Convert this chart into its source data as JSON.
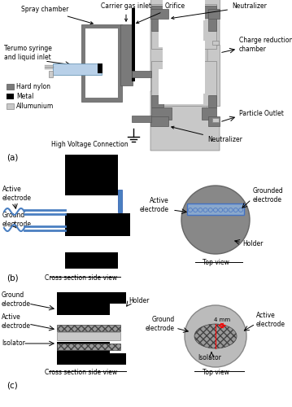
{
  "fig_width": 3.59,
  "fig_height": 5.0,
  "dpi": 100,
  "bg_color": "#ffffff",
  "dark_gray": "#7a7a7a",
  "light_gray": "#c8c8c8",
  "black": "#000000",
  "blue": "#4a7fc1",
  "light_blue": "#b8d0e8",
  "panel_labels": [
    "(a)",
    "(b)",
    "(c)"
  ],
  "legend_items": [
    "Hard nylon",
    "Metal",
    "Allumunium"
  ],
  "legend_colors": [
    "#7a7a7a",
    "#000000",
    "#c8c8c8"
  ]
}
